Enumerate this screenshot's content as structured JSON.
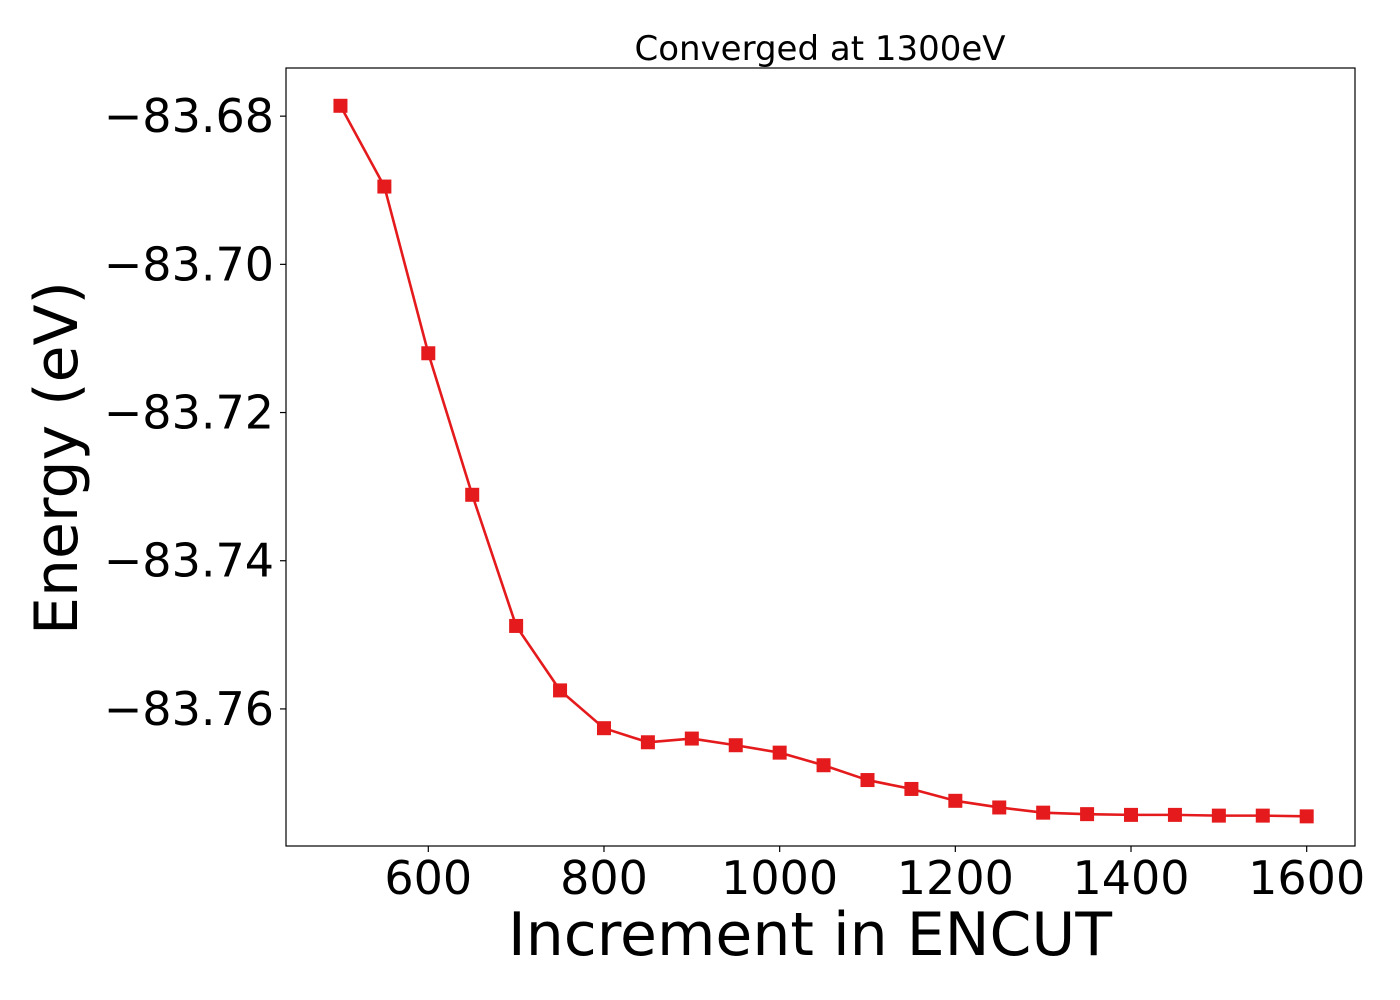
{
  "chart_data": {
    "type": "line",
    "title": "Converged at 1300eV",
    "xlabel": "Increment in ENCUT",
    "ylabel": "Energy (eV)",
    "xlim": [
      438,
      1655
    ],
    "ylim": [
      -83.7785,
      -83.6735
    ],
    "x_ticks": [
      600,
      800,
      1000,
      1200,
      1400,
      1600
    ],
    "x_tick_labels": [
      "600",
      "800",
      "1000",
      "1200",
      "1400",
      "1600"
    ],
    "y_ticks": [
      -83.68,
      -83.7,
      -83.72,
      -83.74,
      -83.76
    ],
    "y_tick_labels": [
      "−83.68",
      "−83.70",
      "−83.72",
      "−83.74",
      "−83.76"
    ],
    "grid": false,
    "series": [
      {
        "color": "#e41a1c",
        "marker": "square",
        "x": [
          500,
          550,
          600,
          650,
          700,
          750,
          800,
          850,
          900,
          950,
          1000,
          1050,
          1100,
          1150,
          1200,
          1250,
          1300,
          1350,
          1400,
          1450,
          1500,
          1550,
          1600
        ],
        "y": [
          -83.6786,
          -83.6895,
          -83.712,
          -83.7311,
          -83.7488,
          -83.7575,
          -83.7626,
          -83.7645,
          -83.764,
          -83.7649,
          -83.7659,
          -83.7676,
          -83.7696,
          -83.7708,
          -83.7724,
          -83.7733,
          -83.774,
          -83.7742,
          -83.7743,
          -83.7743,
          -83.7744,
          -83.7744,
          -83.7745
        ]
      }
    ]
  }
}
